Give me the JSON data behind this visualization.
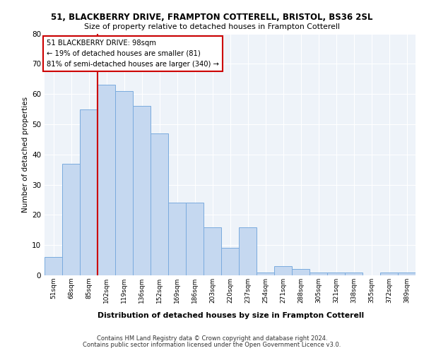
{
  "title1": "51, BLACKBERRY DRIVE, FRAMPTON COTTERELL, BRISTOL, BS36 2SL",
  "title2": "Size of property relative to detached houses in Frampton Cotterell",
  "xlabel": "Distribution of detached houses by size in Frampton Cotterell",
  "ylabel": "Number of detached properties",
  "footer1": "Contains HM Land Registry data © Crown copyright and database right 2024.",
  "footer2": "Contains public sector information licensed under the Open Government Licence v3.0.",
  "categories": [
    "51sqm",
    "68sqm",
    "85sqm",
    "102sqm",
    "119sqm",
    "136sqm",
    "152sqm",
    "169sqm",
    "186sqm",
    "203sqm",
    "220sqm",
    "237sqm",
    "254sqm",
    "271sqm",
    "288sqm",
    "305sqm",
    "321sqm",
    "338sqm",
    "355sqm",
    "372sqm",
    "389sqm"
  ],
  "values": [
    6,
    37,
    55,
    63,
    61,
    56,
    47,
    24,
    24,
    16,
    9,
    16,
    1,
    3,
    2,
    1,
    1,
    1,
    0,
    1,
    1
  ],
  "bar_color": "#c5d8f0",
  "bar_edge_color": "#7aabde",
  "vline_x": 2.5,
  "vline_color": "#cc0000",
  "ylim": [
    0,
    80
  ],
  "yticks": [
    0,
    10,
    20,
    30,
    40,
    50,
    60,
    70,
    80
  ],
  "annotation_text": "51 BLACKBERRY DRIVE: 98sqm\n← 19% of detached houses are smaller (81)\n81% of semi-detached houses are larger (340) →",
  "annotation_box_color": "#cc0000",
  "bg_color": "#eef3f9",
  "grid_color": "#ffffff"
}
